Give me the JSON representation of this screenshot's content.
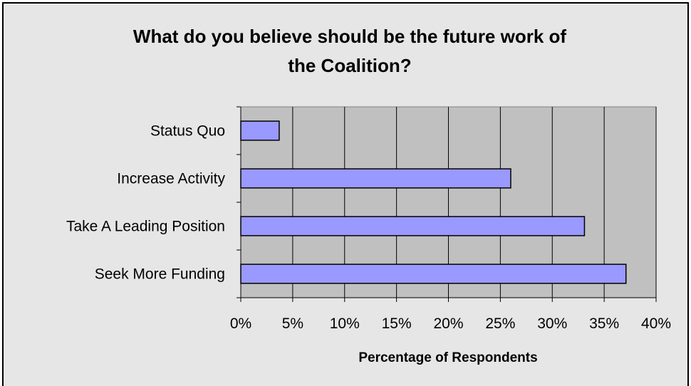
{
  "chart_data": {
    "type": "bar",
    "orientation": "horizontal",
    "title_lines": [
      "What do you believe should be the future work of",
      "the Coalition?"
    ],
    "categories": [
      "Status Quo",
      "Increase Activity",
      "Take A Leading Position",
      "Seek More Funding"
    ],
    "values": [
      3.7,
      26,
      33.1,
      37.1
    ],
    "xlabel": "Percentage of Respondents",
    "ylabel": "",
    "xlim": [
      0,
      40
    ],
    "x_ticks": [
      {
        "value": 0,
        "label": "0%"
      },
      {
        "value": 5,
        "label": "5%"
      },
      {
        "value": 10,
        "label": "10%"
      },
      {
        "value": 15,
        "label": "15%"
      },
      {
        "value": 20,
        "label": "20%"
      },
      {
        "value": 25,
        "label": "25%"
      },
      {
        "value": 30,
        "label": "30%"
      },
      {
        "value": 35,
        "label": "35%"
      },
      {
        "value": 40,
        "label": "40%"
      }
    ],
    "grid": true,
    "legend": "none",
    "colors": {
      "bar_fill": "#9999ff",
      "bar_stroke": "#000000",
      "plot_background": "#c0c0c0",
      "chart_background": "#e6e6e6",
      "gridline": "#000000",
      "text": "#000000"
    }
  }
}
